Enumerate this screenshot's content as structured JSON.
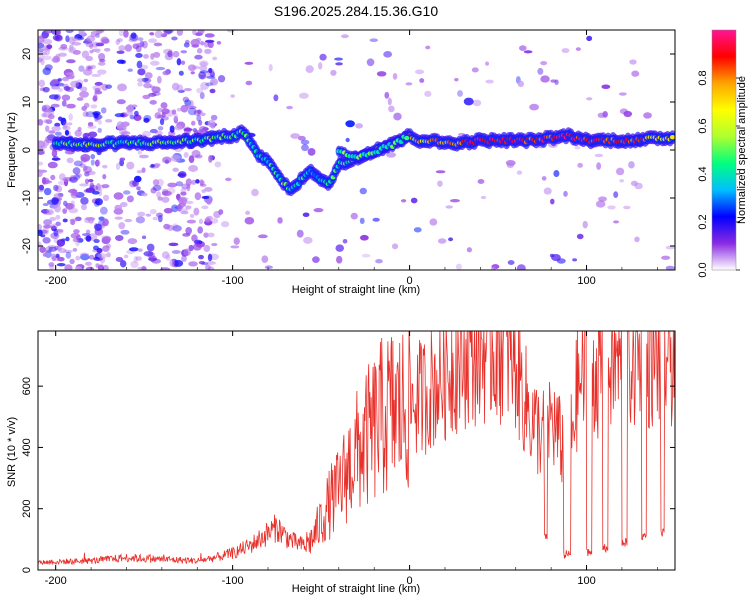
{
  "title": "S196.2025.284.15.36.G10",
  "chart_data": [
    {
      "type": "heatmap",
      "name": "spectrogram",
      "xlabel": "Height of straight line (km)",
      "ylabel": "Frequency (Hz)",
      "xlim": [
        -210,
        150
      ],
      "ylim": [
        -25,
        25
      ],
      "xticks": [
        -200,
        -100,
        0,
        100
      ],
      "yticks": [
        -20,
        -10,
        0,
        10,
        20
      ],
      "colorbar": {
        "label": "Normalized spectral amplitude",
        "range": [
          0,
          1
        ],
        "ticks": [
          "0.0",
          "0.2",
          "0.4",
          "0.6",
          "0.8"
        ],
        "tick_values": [
          0.0,
          0.2,
          0.4,
          0.6,
          0.8
        ],
        "colors": [
          "#ffffff",
          "#8a2be2",
          "#0000ff",
          "#00bfff",
          "#00ff7f",
          "#adff2f",
          "#ffff00",
          "#ffa500",
          "#ff0000",
          "#ff1493"
        ]
      },
      "trace": {
        "x": [
          -200,
          -180,
          -160,
          -140,
          -120,
          -110,
          -100,
          -95,
          -90,
          -85,
          -80,
          -75,
          -70,
          -65,
          -60,
          -55,
          -50,
          -45,
          -40,
          -35,
          -30,
          -25,
          -20,
          -15,
          -10,
          -5,
          0,
          5,
          10,
          20,
          30,
          40,
          50,
          60,
          70,
          80,
          90,
          100,
          110,
          120,
          130,
          140,
          150
        ],
        "y": [
          1.5,
          1.0,
          1.5,
          1.5,
          2.0,
          2.5,
          3.0,
          3.5,
          2.0,
          -1.0,
          -2.5,
          -5.0,
          -7.5,
          -8.0,
          -5.5,
          -4.5,
          -6.0,
          -7.0,
          -3.0,
          -2.5,
          -1.5,
          -1.0,
          0.0,
          0.5,
          1.5,
          2.0,
          3.0,
          2.0,
          2.0,
          1.5,
          1.5,
          2.0,
          2.0,
          2.0,
          2.0,
          2.5,
          3.0,
          2.0,
          2.0,
          2.0,
          2.0,
          2.5,
          2.5
        ],
        "amplitude": [
          0.45,
          0.55,
          0.45,
          0.5,
          0.5,
          0.5,
          0.45,
          0.5,
          0.45,
          0.4,
          0.4,
          0.45,
          0.5,
          0.45,
          0.4,
          0.35,
          0.4,
          0.4,
          0.45,
          0.5,
          0.55,
          0.6,
          0.6,
          0.7,
          0.7,
          0.75,
          0.75,
          0.7,
          0.75,
          0.8,
          0.85,
          0.95,
          0.95,
          0.95,
          0.85,
          0.9,
          0.95,
          0.9,
          0.85,
          0.9,
          0.85,
          0.7,
          0.7
        ]
      },
      "secondary_trace": {
        "x": [
          -40,
          -30,
          -25,
          -20,
          -15,
          -10,
          -5,
          0
        ],
        "y": [
          0.0,
          -1.5,
          -1.0,
          -0.5,
          0.5,
          1.0,
          2.0,
          3.0
        ]
      }
    },
    {
      "type": "line",
      "name": "snr",
      "xlabel": "Height of straight line (km)",
      "ylabel": "SNR (10 * v/v)",
      "xlim": [
        -210,
        150
      ],
      "ylim": [
        0,
        780
      ],
      "xticks": [
        -200,
        -100,
        0,
        100
      ],
      "yticks": [
        0,
        200,
        400,
        600
      ],
      "color": "#e8302a",
      "anchors": {
        "x": [
          -210,
          -180,
          -160,
          -140,
          -120,
          -110,
          -100,
          -90,
          -80,
          -75,
          -70,
          -65,
          -60,
          -55,
          -50,
          -45,
          -40,
          -35,
          -30,
          -25,
          -20,
          -15,
          -10,
          -5,
          0,
          10,
          20,
          30,
          40,
          50,
          55,
          60,
          65,
          70,
          75,
          80,
          85,
          90,
          95,
          100,
          110,
          120,
          130,
          140,
          150
        ],
        "y": [
          25,
          30,
          40,
          35,
          30,
          40,
          55,
          80,
          120,
          140,
          110,
          90,
          80,
          100,
          160,
          220,
          260,
          330,
          380,
          420,
          460,
          500,
          520,
          520,
          540,
          580,
          640,
          700,
          720,
          730,
          720,
          680,
          560,
          480,
          440,
          500,
          420,
          380,
          600,
          640,
          660,
          690,
          690,
          700,
          710
        ]
      },
      "dropouts": [
        {
          "x": [
            76,
            78
          ],
          "y": 110
        },
        {
          "x": [
            87,
            91
          ],
          "y": 50
        },
        {
          "x": [
            100,
            103
          ],
          "y": 60
        },
        {
          "x": [
            109,
            112
          ],
          "y": 70
        },
        {
          "x": [
            120,
            123
          ],
          "y": 90
        },
        {
          "x": [
            131,
            134
          ],
          "y": 110
        },
        {
          "x": [
            142,
            144
          ],
          "y": 120
        }
      ]
    }
  ]
}
